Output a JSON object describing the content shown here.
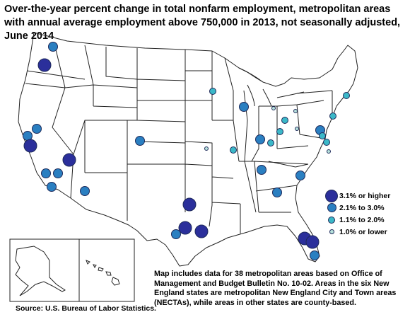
{
  "title": "Over-the-year percent change in total nonfarm employment, metropolitan areas with annual average employment above 750,000 in 2013, not seasonally adjusted, June 2014",
  "legend": [
    {
      "label": "3.1% or higher",
      "color": "#2b2f9b",
      "size": "large"
    },
    {
      "label": "2.1% to 3.0%",
      "color": "#2a7fc1",
      "size": "medium"
    },
    {
      "label": "1.1% to 2.0%",
      "color": "#3bb8c8",
      "size": "small"
    },
    {
      "label": "1.0% or lower",
      "color": "#b7e2dc",
      "size": "tiny"
    }
  ],
  "note": "Map includes data for 38 metropolitan areas based on Office of Management and Budget Bulletin No. 10-02. Areas in the six New England states are metropolitan New England City and Town areas (NECTAs), while areas in other states are county-based.",
  "source": "Source:  U.S. Bureau of Labor Statistics."
}
